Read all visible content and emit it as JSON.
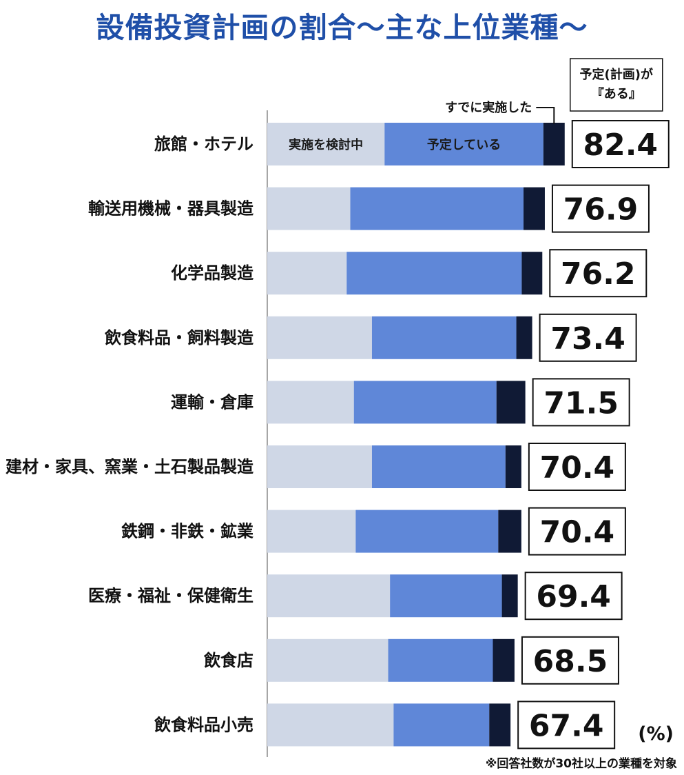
{
  "title": "設備投資計画の割合～主な上位業種～",
  "chart_data": {
    "type": "bar",
    "orientation": "horizontal",
    "stacked": true,
    "title": "設備投資計画の割合～主な上位業種～",
    "unit": "(%)",
    "note": "※回答社数が30社以上の業種を対象",
    "total_box_label": "予定(計画)が『ある』",
    "categories": [
      "旅館・ホテル",
      "輸送用機械・器具製造",
      "化学品製造",
      "飲食料品・飼料製造",
      "運輸・倉庫",
      "建材・家具、窯業・土石製品製造",
      "鉄鋼・非鉄・鉱業",
      "医療・福祉・保健衛生",
      "飲食店",
      "飲食料品小売"
    ],
    "series": [
      {
        "name": "実施を検討中",
        "color": "#cfd7e6",
        "values": [
          32.5,
          23.0,
          22.0,
          29.0,
          24.0,
          29.0,
          24.5,
          34.0,
          33.5,
          35.0
        ]
      },
      {
        "name": "予定している",
        "color": "#5f87d8",
        "values": [
          44.0,
          48.0,
          48.5,
          40.0,
          39.5,
          37.0,
          39.5,
          31.0,
          29.0,
          26.5
        ]
      },
      {
        "name": "すでに実施した",
        "color": "#101a35",
        "values": [
          5.9,
          5.9,
          5.7,
          4.4,
          8.0,
          4.4,
          6.4,
          4.4,
          6.0,
          5.9
        ]
      }
    ],
    "totals": [
      82.4,
      76.9,
      76.2,
      73.4,
      71.5,
      70.4,
      70.4,
      69.4,
      68.5,
      67.4
    ],
    "xlim": [
      0,
      100
    ],
    "grid": false,
    "legend": "inline-labels-on-first-bar"
  }
}
